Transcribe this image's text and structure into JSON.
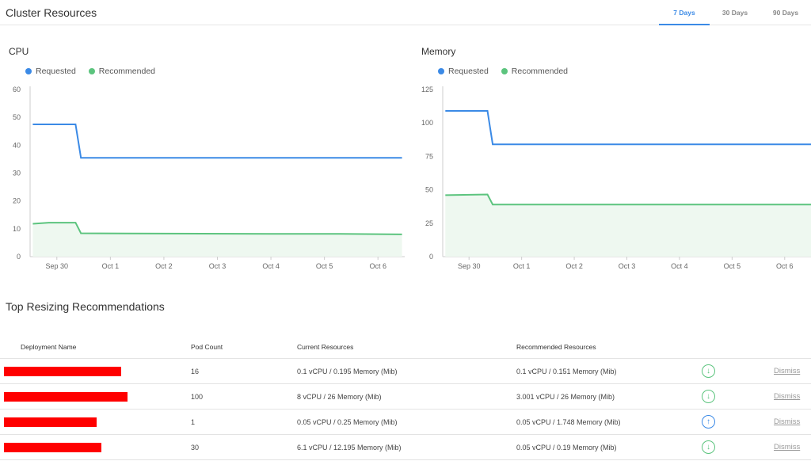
{
  "header": {
    "title": "Cluster Resources",
    "tabs": [
      {
        "label": "7 Days",
        "active": true
      },
      {
        "label": "30 Days",
        "active": false
      },
      {
        "label": "90 Days",
        "active": false
      }
    ]
  },
  "colors": {
    "requested": "#3b8ae6",
    "recommended": "#5cc47e",
    "fill": "#eef8f0",
    "axis": "#cccccc",
    "redaction": "#ff0000"
  },
  "legend": {
    "requested": "Requested",
    "recommended": "Recommended"
  },
  "charts": {
    "cpu": {
      "title": "CPU",
      "chart_data": {
        "type": "line",
        "title": "CPU",
        "ylim": [
          0,
          60
        ],
        "yticks": [
          0,
          10,
          20,
          30,
          40,
          50,
          60
        ],
        "xlim": [
          0,
          7
        ],
        "xticks": [
          {
            "label": "Sep 30",
            "x": 0.5
          },
          {
            "label": "Oct 1",
            "x": 1.5
          },
          {
            "label": "Oct 2",
            "x": 2.5
          },
          {
            "label": "Oct 3",
            "x": 3.5
          },
          {
            "label": "Oct 4",
            "x": 4.5
          },
          {
            "label": "Oct 5",
            "x": 5.5
          },
          {
            "label": "Oct 6",
            "x": 6.5
          }
        ],
        "series": [
          {
            "name": "Requested",
            "points": [
              [
                0.05,
                47.5
              ],
              [
                0.85,
                47.5
              ],
              [
                0.95,
                35.5
              ],
              [
                6.95,
                35.5
              ]
            ]
          },
          {
            "name": "Recommended",
            "points": [
              [
                0.05,
                11.8
              ],
              [
                0.35,
                12.2
              ],
              [
                0.85,
                12.2
              ],
              [
                0.95,
                8.4
              ],
              [
                1.8,
                8.3
              ],
              [
                4.5,
                8.2
              ],
              [
                5.8,
                8.2
              ],
              [
                6.95,
                8.0
              ]
            ]
          }
        ]
      }
    },
    "memory": {
      "title": "Memory",
      "chart_data": {
        "type": "line",
        "title": "Memory",
        "ylim": [
          0,
          125
        ],
        "yticks": [
          0,
          25,
          50,
          75,
          100,
          125
        ],
        "xlim": [
          0,
          7
        ],
        "xticks": [
          {
            "label": "Sep 30",
            "x": 0.5
          },
          {
            "label": "Oct 1",
            "x": 1.5
          },
          {
            "label": "Oct 2",
            "x": 2.5
          },
          {
            "label": "Oct 3",
            "x": 3.5
          },
          {
            "label": "Oct 4",
            "x": 4.5
          },
          {
            "label": "Oct 5",
            "x": 5.5
          },
          {
            "label": "Oct 6",
            "x": 6.5
          }
        ],
        "series": [
          {
            "name": "Requested",
            "points": [
              [
                0.05,
                109
              ],
              [
                0.85,
                109
              ],
              [
                0.95,
                84
              ],
              [
                7.0,
                84
              ]
            ]
          },
          {
            "name": "Recommended",
            "points": [
              [
                0.05,
                46
              ],
              [
                0.85,
                46.5
              ],
              [
                0.95,
                39
              ],
              [
                7.0,
                39
              ]
            ]
          }
        ]
      }
    }
  },
  "recommendations": {
    "title": "Top Resizing Recommendations",
    "columns": {
      "name": "Deployment Name",
      "pods": "Pod Count",
      "current": "Current Resources",
      "recommended": "Recommended Resources"
    },
    "dismiss_label": "Dismiss",
    "rows": [
      {
        "pods": "16",
        "current": "0.1 vCPU / 0.195 Memory (Mib)",
        "recommended": "0.1 vCPU / 0.151 Memory (Mib)",
        "direction": "down",
        "redacted_width_fraction": 0.95
      },
      {
        "pods": "100",
        "current": "8 vCPU / 26 Memory (Mib)",
        "recommended": "3.001 vCPU / 26 Memory (Mib)",
        "direction": "down",
        "redacted_width_fraction": 1.0
      },
      {
        "pods": "1",
        "current": "0.05 vCPU / 0.25 Memory (Mib)",
        "recommended": "0.05 vCPU / 1.748 Memory (Mib)",
        "direction": "up",
        "redacted_width_fraction": 0.75
      },
      {
        "pods": "30",
        "current": "6.1 vCPU / 12.195 Memory (Mib)",
        "recommended": "0.05 vCPU / 0.19 Memory (Mib)",
        "direction": "down",
        "redacted_width_fraction": 0.79
      }
    ]
  }
}
